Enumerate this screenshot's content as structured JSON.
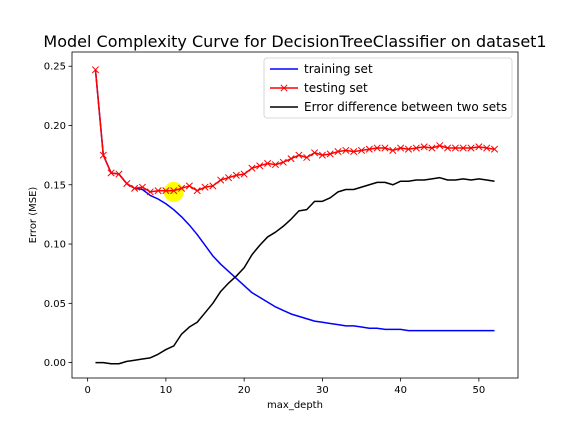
{
  "chart_data": {
    "type": "line",
    "title": "Model Complexity Curve for DecisionTreeClassifier on dataset1",
    "xlabel": "max_depth",
    "ylabel": "Error (MSE)",
    "xlim": [
      -2,
      55
    ],
    "ylim": [
      -0.013,
      0.262
    ],
    "xticks": [
      0,
      10,
      20,
      30,
      40,
      50
    ],
    "yticks": [
      0.0,
      0.05,
      0.1,
      0.15,
      0.2,
      0.25
    ],
    "xtick_labels": [
      "0",
      "10",
      "20",
      "30",
      "40",
      "50"
    ],
    "ytick_labels": [
      "0.00",
      "0.05",
      "0.10",
      "0.15",
      "0.20",
      "0.25"
    ],
    "grid": false,
    "legend_position": "top-right",
    "x": [
      1,
      2,
      3,
      4,
      5,
      6,
      7,
      8,
      9,
      10,
      11,
      12,
      13,
      14,
      15,
      16,
      17,
      18,
      19,
      20,
      21,
      22,
      23,
      24,
      25,
      26,
      27,
      28,
      29,
      30,
      31,
      32,
      33,
      34,
      35,
      36,
      37,
      38,
      39,
      40,
      41,
      42,
      43,
      44,
      45,
      46,
      47,
      48,
      49,
      50,
      51,
      52
    ],
    "series": [
      {
        "name": "training set",
        "color": "#0000ff",
        "marker": "none",
        "values": [
          0.247,
          0.175,
          0.16,
          0.159,
          0.151,
          0.147,
          0.146,
          0.141,
          0.138,
          0.134,
          0.129,
          0.123,
          0.116,
          0.108,
          0.099,
          0.09,
          0.083,
          0.077,
          0.071,
          0.065,
          0.059,
          0.055,
          0.051,
          0.047,
          0.044,
          0.041,
          0.039,
          0.037,
          0.035,
          0.034,
          0.033,
          0.032,
          0.031,
          0.031,
          0.03,
          0.029,
          0.029,
          0.028,
          0.028,
          0.028,
          0.027,
          0.027,
          0.027,
          0.027,
          0.027,
          0.027,
          0.027,
          0.027,
          0.027,
          0.027,
          0.027,
          0.027
        ]
      },
      {
        "name": "testing set",
        "color": "#ff0000",
        "marker": "x",
        "values": [
          0.247,
          0.175,
          0.16,
          0.159,
          0.151,
          0.147,
          0.148,
          0.144,
          0.145,
          0.145,
          0.145,
          0.147,
          0.149,
          0.145,
          0.148,
          0.149,
          0.154,
          0.156,
          0.158,
          0.159,
          0.164,
          0.166,
          0.168,
          0.167,
          0.169,
          0.172,
          0.175,
          0.173,
          0.177,
          0.175,
          0.176,
          0.178,
          0.179,
          0.178,
          0.179,
          0.18,
          0.181,
          0.181,
          0.179,
          0.181,
          0.18,
          0.181,
          0.182,
          0.181,
          0.183,
          0.181,
          0.181,
          0.181,
          0.181,
          0.182,
          0.181,
          0.18
        ]
      },
      {
        "name": "Error difference between two sets",
        "color": "#000000",
        "marker": "none",
        "values": [
          0.0,
          0.0,
          -0.001,
          -0.001,
          0.001,
          0.002,
          0.003,
          0.004,
          0.007,
          0.011,
          0.014,
          0.024,
          0.03,
          0.034,
          0.042,
          0.05,
          0.06,
          0.067,
          0.073,
          0.08,
          0.091,
          0.099,
          0.106,
          0.11,
          0.115,
          0.121,
          0.128,
          0.129,
          0.136,
          0.136,
          0.139,
          0.144,
          0.146,
          0.146,
          0.148,
          0.15,
          0.152,
          0.152,
          0.15,
          0.153,
          0.153,
          0.154,
          0.154,
          0.155,
          0.156,
          0.154,
          0.154,
          0.155,
          0.154,
          0.155,
          0.154,
          0.153
        ]
      }
    ],
    "highlight": {
      "x": 11,
      "y": 0.144,
      "color": "#ffff00"
    }
  }
}
